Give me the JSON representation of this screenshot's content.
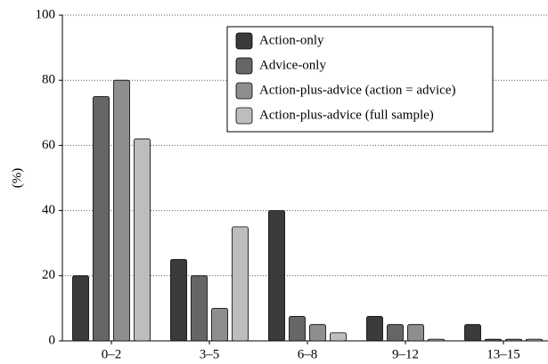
{
  "chart_data": {
    "type": "bar",
    "ylabel": "(%)",
    "categories": [
      "0–2",
      "3–5",
      "6–8",
      "9–12",
      "13–15"
    ],
    "series": [
      {
        "name": "Action-only",
        "color": "#3a3a3a",
        "values": [
          20,
          25,
          40,
          7.5,
          5
        ]
      },
      {
        "name": "Advice-only",
        "color": "#666666",
        "values": [
          75,
          20,
          7.5,
          5,
          0.5
        ]
      },
      {
        "name": "Action-plus-advice (action = advice)",
        "color": "#8e8e8e",
        "values": [
          80,
          10,
          5,
          5,
          0.5
        ]
      },
      {
        "name": "Action-plus-advice (full sample)",
        "color": "#bdbdbd",
        "values": [
          62,
          35,
          2.5,
          0.5,
          0.5
        ]
      }
    ],
    "ylim": [
      0,
      100
    ],
    "yticks": [
      0,
      20,
      40,
      60,
      80,
      100
    ],
    "grid": true,
    "legend": "upper right"
  }
}
